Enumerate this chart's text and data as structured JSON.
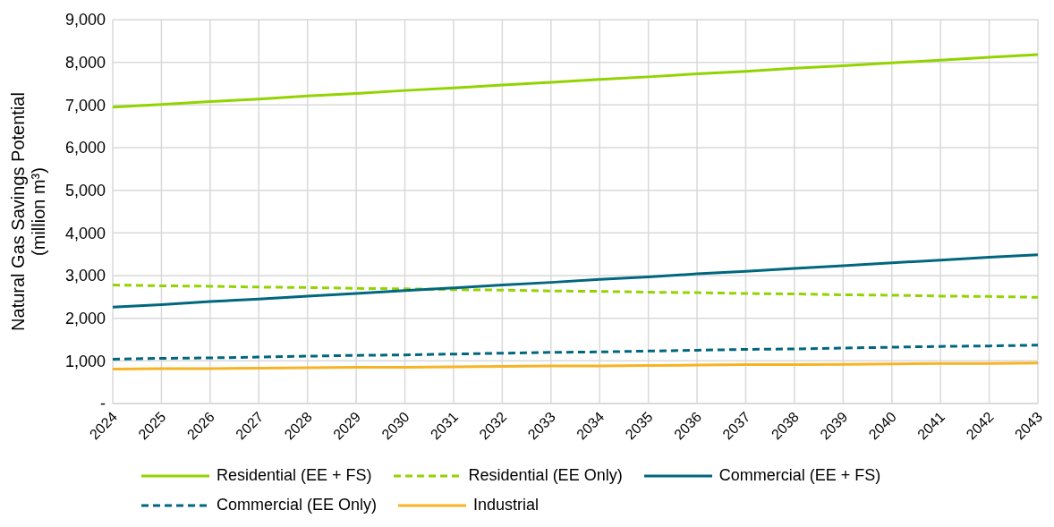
{
  "chart_data": {
    "type": "line",
    "ylabel": "Natural Gas Savings Potential\n(million m³)",
    "categories": [
      "2024",
      "2025",
      "2026",
      "2027",
      "2028",
      "2029",
      "2030",
      "2031",
      "2032",
      "2033",
      "2034",
      "2035",
      "2036",
      "2037",
      "2038",
      "2039",
      "2040",
      "2041",
      "2042",
      "2043"
    ],
    "series": [
      {
        "name": "Residential (EE + FS)",
        "color": "#92d400",
        "line_style": "solid",
        "values": [
          6950,
          7010,
          7080,
          7140,
          7210,
          7270,
          7340,
          7400,
          7470,
          7530,
          7600,
          7660,
          7730,
          7790,
          7860,
          7920,
          7990,
          8050,
          8120,
          8180
        ]
      },
      {
        "name": "Residential (EE Only)",
        "color": "#92d400",
        "line_style": "dashed",
        "values": [
          2780,
          2760,
          2750,
          2730,
          2720,
          2700,
          2690,
          2670,
          2660,
          2640,
          2630,
          2610,
          2600,
          2580,
          2570,
          2550,
          2540,
          2520,
          2510,
          2490
        ]
      },
      {
        "name": "Commercial (EE + FS)",
        "color": "#00677f",
        "line_style": "solid",
        "values": [
          2260,
          2320,
          2390,
          2450,
          2520,
          2580,
          2650,
          2710,
          2780,
          2840,
          2910,
          2970,
          3040,
          3100,
          3170,
          3230,
          3300,
          3360,
          3430,
          3490
        ]
      },
      {
        "name": "Commercial (EE Only)",
        "color": "#00677f",
        "line_style": "dashed",
        "values": [
          1040,
          1060,
          1070,
          1090,
          1110,
          1130,
          1140,
          1160,
          1180,
          1200,
          1210,
          1230,
          1250,
          1270,
          1280,
          1300,
          1320,
          1340,
          1350,
          1370
        ]
      },
      {
        "name": "Industrial",
        "color": "#f8b323",
        "line_style": "solid",
        "values": [
          810,
          820,
          820,
          830,
          840,
          850,
          850,
          860,
          870,
          880,
          880,
          890,
          900,
          910,
          910,
          920,
          930,
          940,
          940,
          950
        ]
      }
    ],
    "ylim": [
      0,
      9000
    ],
    "yticks": [
      {
        "value": 0,
        "label": "-"
      },
      {
        "value": 1000,
        "label": "1,000"
      },
      {
        "value": 2000,
        "label": "2,000"
      },
      {
        "value": 3000,
        "label": "3,000"
      },
      {
        "value": 4000,
        "label": "4,000"
      },
      {
        "value": 5000,
        "label": "5,000"
      },
      {
        "value": 6000,
        "label": "6,000"
      },
      {
        "value": 7000,
        "label": "7,000"
      },
      {
        "value": 8000,
        "label": "8,000"
      },
      {
        "value": 9000,
        "label": "9,000"
      }
    ],
    "grid": true,
    "legend": "bottom",
    "marker": "none"
  }
}
